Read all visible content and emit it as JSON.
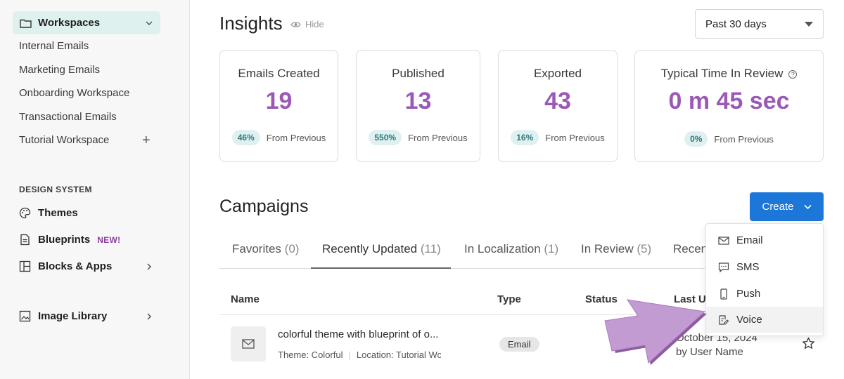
{
  "sidebar": {
    "workspaces_label": "Workspaces",
    "items": [
      "Internal Emails",
      "Marketing Emails",
      "Onboarding Workspace",
      "Transactional Emails",
      "Tutorial Workspace"
    ],
    "design_system_title": "DESIGN SYSTEM",
    "nav": {
      "themes": "Themes",
      "blueprints": "Blueprints",
      "new_badge": "NEW!",
      "blocks_apps": "Blocks & Apps",
      "image_library": "Image Library"
    }
  },
  "insights": {
    "title": "Insights",
    "hide_label": "Hide",
    "range": "Past 30 days",
    "cards": [
      {
        "title": "Emails Created",
        "value": "19",
        "change": "46%",
        "from": "From Previous"
      },
      {
        "title": "Published",
        "value": "13",
        "change": "550%",
        "from": "From Previous"
      },
      {
        "title": "Exported",
        "value": "43",
        "change": "16%",
        "from": "From Previous"
      },
      {
        "title": "Typical Time In Review",
        "value": "0 m 45 sec",
        "change": "0%",
        "from": "From Previous"
      }
    ]
  },
  "campaigns": {
    "title": "Campaigns",
    "create_label": "Create",
    "tabs": [
      {
        "label": "Favorites",
        "count": "(0)"
      },
      {
        "label": "Recently Updated",
        "count": "(11)"
      },
      {
        "label": "In Localization",
        "count": "(1)"
      },
      {
        "label": "In Review",
        "count": "(5)"
      },
      {
        "label": "Recent",
        "count": ""
      }
    ],
    "columns": {
      "name": "Name",
      "type": "Type",
      "status": "Status",
      "last_updated": "Last Up"
    },
    "rows": [
      {
        "title": "colorful theme with blueprint of o...",
        "theme": "Theme: Colorful",
        "location": "Location: Tutorial Work",
        "type": "Email",
        "date": "October 15, 2024",
        "by": "by User Name"
      }
    ],
    "menu": [
      "Email",
      "SMS",
      "Push",
      "Voice"
    ]
  },
  "colors": {
    "accent_purple": "#9b59b6",
    "primary_blue": "#1d77d9",
    "sidebar_active": "#dff1ee",
    "pointer": "#c39bd3"
  }
}
